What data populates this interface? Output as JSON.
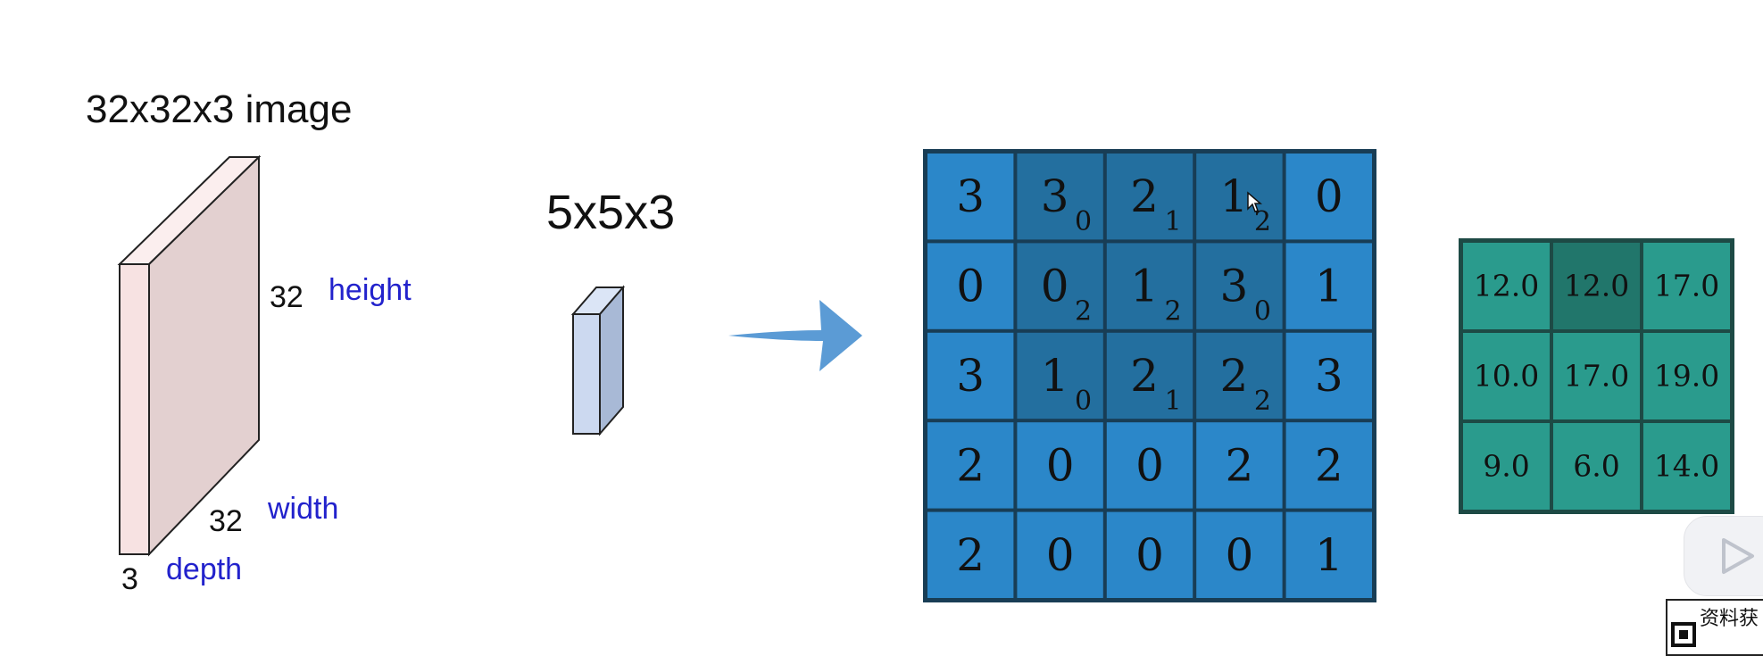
{
  "image_label": "32x32x3 image",
  "filter_label": "5x5x3",
  "dims": {
    "height_num": "32",
    "height_word": "height",
    "width_num": "32",
    "width_word": "width",
    "depth_num": "3",
    "depth_word": "depth"
  },
  "input_grid": {
    "rows": [
      [
        {
          "v": "3",
          "k": ""
        },
        {
          "v": "3",
          "k": "0"
        },
        {
          "v": "2",
          "k": "1"
        },
        {
          "v": "1",
          "k": "2"
        },
        {
          "v": "0",
          "k": ""
        }
      ],
      [
        {
          "v": "0",
          "k": ""
        },
        {
          "v": "0",
          "k": "2"
        },
        {
          "v": "1",
          "k": "2"
        },
        {
          "v": "3",
          "k": "0"
        },
        {
          "v": "1",
          "k": ""
        }
      ],
      [
        {
          "v": "3",
          "k": ""
        },
        {
          "v": "1",
          "k": "0"
        },
        {
          "v": "2",
          "k": "1"
        },
        {
          "v": "2",
          "k": "2"
        },
        {
          "v": "3",
          "k": ""
        }
      ],
      [
        {
          "v": "2",
          "k": ""
        },
        {
          "v": "0",
          "k": ""
        },
        {
          "v": "0",
          "k": ""
        },
        {
          "v": "2",
          "k": ""
        },
        {
          "v": "2",
          "k": ""
        }
      ],
      [
        {
          "v": "2",
          "k": ""
        },
        {
          "v": "0",
          "k": ""
        },
        {
          "v": "0",
          "k": ""
        },
        {
          "v": "0",
          "k": ""
        },
        {
          "v": "1",
          "k": ""
        }
      ]
    ],
    "highlight": {
      "row_start": 0,
      "row_end": 2,
      "col_start": 1,
      "col_end": 3
    }
  },
  "output_grid": {
    "rows": [
      [
        "12.0",
        "12.0",
        "17.0"
      ],
      [
        "10.0",
        "17.0",
        "19.0"
      ],
      [
        "9.0",
        "6.0",
        "14.0"
      ]
    ],
    "highlight": {
      "row": 0,
      "col": 1
    }
  },
  "colors": {
    "input_cell": "#2b87c9",
    "input_highlight": "#236f9f",
    "grid_line": "#183d55",
    "output_cell": "#2a9b8d",
    "output_highlight": "#21766b",
    "output_line": "#1d4a45",
    "arrow": "#5b9bd5",
    "volume_front": "#f7e3e3",
    "volume_side": "#e2cfcf",
    "filter_front": "#ccd9f0",
    "filter_side": "#a6b8d6",
    "accent_text": "#2222cc"
  },
  "overlay": {
    "play_icon": "play-icon",
    "qr_label": "资料获"
  }
}
